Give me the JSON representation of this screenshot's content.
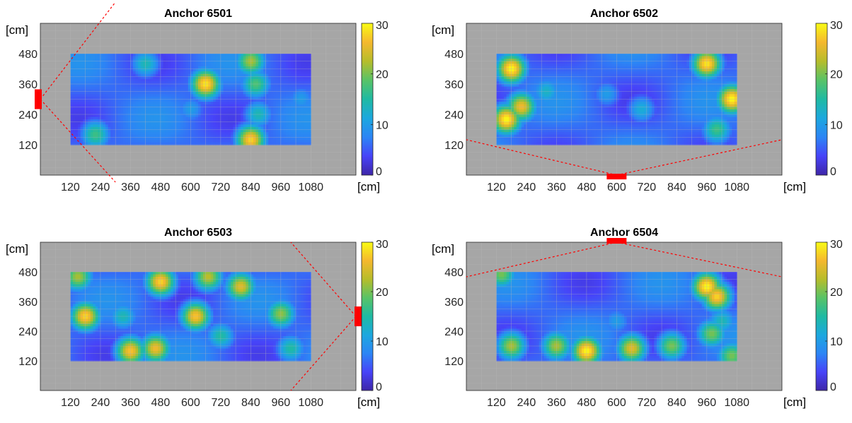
{
  "figure": {
    "unit_label": "[cm]"
  },
  "colormap": {
    "name": "parula",
    "min": 0,
    "max": 30,
    "ticks": [
      0,
      10,
      20,
      30
    ],
    "stops": [
      "#3e26a8",
      "#4743f8",
      "#2c85f5",
      "#1ca8df",
      "#1fbaa3",
      "#58c367",
      "#b6bd2b",
      "#f5b82e",
      "#f9fb14"
    ]
  },
  "colors": {
    "out_of_area": "#a6a6a6",
    "grid": "#b8b8b8",
    "anchor": "#ff0000",
    "fov_line": "#ff0000"
  },
  "chart_data": [
    {
      "type": "heatmap",
      "title": "Anchor 6501",
      "xlabel": "[cm]",
      "ylabel": "[cm]",
      "xlim": [
        0,
        1260
      ],
      "ylim": [
        0,
        600
      ],
      "xticks": [
        120,
        240,
        360,
        480,
        600,
        720,
        840,
        960,
        1080
      ],
      "yticks": [
        120,
        240,
        360,
        480
      ],
      "grid": true,
      "data_region": {
        "x": [
          120,
          1080
        ],
        "y": [
          120,
          480
        ]
      },
      "anchor": {
        "side": "left",
        "position_cm": 300
      },
      "colorbar": {
        "min": 0,
        "max": 30,
        "ticks": [
          0,
          10,
          20,
          30
        ]
      },
      "hotspots": [
        {
          "x": 660,
          "y": 360,
          "v": 29
        },
        {
          "x": 840,
          "y": 450,
          "v": 22
        },
        {
          "x": 860,
          "y": 360,
          "v": 18
        },
        {
          "x": 840,
          "y": 140,
          "v": 28
        },
        {
          "x": 220,
          "y": 160,
          "v": 17
        },
        {
          "x": 420,
          "y": 440,
          "v": 14
        },
        {
          "x": 870,
          "y": 240,
          "v": 14
        },
        {
          "x": 600,
          "y": 260,
          "v": 10
        },
        {
          "x": 1040,
          "y": 300,
          "v": 10
        }
      ]
    },
    {
      "type": "heatmap",
      "title": "Anchor 6502",
      "xlabel": "[cm]",
      "ylabel": "[cm]",
      "xlim": [
        0,
        1260
      ],
      "ylim": [
        0,
        600
      ],
      "xticks": [
        120,
        240,
        360,
        480,
        600,
        720,
        840,
        960,
        1080
      ],
      "yticks": [
        120,
        240,
        360,
        480
      ],
      "grid": true,
      "data_region": {
        "x": [
          120,
          1080
        ],
        "y": [
          120,
          480
        ]
      },
      "anchor": {
        "side": "bottom",
        "position_cm": 600
      },
      "colorbar": {
        "min": 0,
        "max": 30,
        "ticks": [
          0,
          10,
          20,
          30
        ]
      },
      "hotspots": [
        {
          "x": 180,
          "y": 420,
          "v": 30
        },
        {
          "x": 160,
          "y": 220,
          "v": 30
        },
        {
          "x": 220,
          "y": 270,
          "v": 26
        },
        {
          "x": 960,
          "y": 440,
          "v": 29
        },
        {
          "x": 1060,
          "y": 300,
          "v": 30
        },
        {
          "x": 1000,
          "y": 180,
          "v": 17
        },
        {
          "x": 320,
          "y": 330,
          "v": 13
        },
        {
          "x": 560,
          "y": 320,
          "v": 10
        },
        {
          "x": 700,
          "y": 260,
          "v": 12
        }
      ]
    },
    {
      "type": "heatmap",
      "title": "Anchor 6503",
      "xlabel": "[cm]",
      "ylabel": "[cm]",
      "xlim": [
        0,
        1260
      ],
      "ylim": [
        0,
        600
      ],
      "xticks": [
        120,
        240,
        360,
        480,
        600,
        720,
        840,
        960,
        1080
      ],
      "yticks": [
        120,
        240,
        360,
        480
      ],
      "grid": true,
      "data_region": {
        "x": [
          120,
          1080
        ],
        "y": [
          120,
          480
        ]
      },
      "anchor": {
        "side": "right",
        "position_cm": 300
      },
      "colorbar": {
        "min": 0,
        "max": 30,
        "ticks": [
          0,
          10,
          20,
          30
        ]
      },
      "hotspots": [
        {
          "x": 180,
          "y": 300,
          "v": 28
        },
        {
          "x": 150,
          "y": 460,
          "v": 22
        },
        {
          "x": 480,
          "y": 440,
          "v": 28
        },
        {
          "x": 360,
          "y": 160,
          "v": 27
        },
        {
          "x": 460,
          "y": 170,
          "v": 26
        },
        {
          "x": 620,
          "y": 300,
          "v": 27
        },
        {
          "x": 670,
          "y": 460,
          "v": 23
        },
        {
          "x": 800,
          "y": 420,
          "v": 25
        },
        {
          "x": 960,
          "y": 310,
          "v": 21
        },
        {
          "x": 720,
          "y": 220,
          "v": 15
        },
        {
          "x": 330,
          "y": 300,
          "v": 14
        },
        {
          "x": 1000,
          "y": 170,
          "v": 15
        }
      ]
    },
    {
      "type": "heatmap",
      "title": "Anchor 6504",
      "xlabel": "[cm]",
      "ylabel": "[cm]",
      "xlim": [
        0,
        1260
      ],
      "ylim": [
        0,
        600
      ],
      "xticks": [
        120,
        240,
        360,
        480,
        600,
        720,
        840,
        960,
        1080
      ],
      "yticks": [
        120,
        240,
        360,
        480
      ],
      "grid": true,
      "data_region": {
        "x": [
          120,
          1080
        ],
        "y": [
          120,
          480
        ]
      },
      "anchor": {
        "side": "top",
        "position_cm": 600
      },
      "colorbar": {
        "min": 0,
        "max": 30,
        "ticks": [
          0,
          10,
          20,
          30
        ]
      },
      "hotspots": [
        {
          "x": 960,
          "y": 420,
          "v": 30
        },
        {
          "x": 1000,
          "y": 380,
          "v": 28
        },
        {
          "x": 480,
          "y": 160,
          "v": 30
        },
        {
          "x": 660,
          "y": 170,
          "v": 25
        },
        {
          "x": 360,
          "y": 180,
          "v": 22
        },
        {
          "x": 180,
          "y": 180,
          "v": 22
        },
        {
          "x": 140,
          "y": 470,
          "v": 20
        },
        {
          "x": 820,
          "y": 180,
          "v": 20
        },
        {
          "x": 980,
          "y": 230,
          "v": 20
        },
        {
          "x": 1060,
          "y": 140,
          "v": 20
        },
        {
          "x": 1020,
          "y": 280,
          "v": 14
        },
        {
          "x": 600,
          "y": 280,
          "v": 10
        }
      ]
    }
  ]
}
